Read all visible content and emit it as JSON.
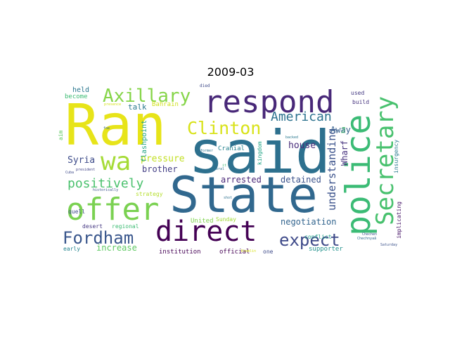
{
  "title": "2009-03",
  "words": [
    {
      "text": "said",
      "color": "#2d708e"
    },
    {
      "text": "Ran",
      "color": "#e7e419"
    },
    {
      "text": "State",
      "color": "#31688e"
    },
    {
      "text": "police",
      "color": "#3bbb75"
    },
    {
      "text": "respond",
      "color": "#482878"
    },
    {
      "text": "offer",
      "color": "#7ad151"
    },
    {
      "text": "direct",
      "color": "#440154"
    },
    {
      "text": "Secretary",
      "color": "#48c16e"
    },
    {
      "text": "wa",
      "color": "#a5db36"
    },
    {
      "text": "Axillary",
      "color": "#86d549"
    },
    {
      "text": "Clinton",
      "color": "#d8e219"
    },
    {
      "text": "Fordham",
      "color": "#39568c"
    },
    {
      "text": "expect",
      "color": "#3e4a89"
    },
    {
      "text": "American",
      "color": "#2c728e"
    },
    {
      "text": "positively",
      "color": "#4ac16d"
    },
    {
      "text": "understanding",
      "color": "#3b528b"
    },
    {
      "text": "pressure",
      "color": "#c2df23"
    },
    {
      "text": "house",
      "color": "#472c7a"
    },
    {
      "text": "Syria",
      "color": "#3e4c8a"
    },
    {
      "text": "brother",
      "color": "#433e85"
    },
    {
      "text": "arrested",
      "color": "#482677"
    },
    {
      "text": "detained",
      "color": "#3b528b"
    },
    {
      "text": "negotiation",
      "color": "#32648e"
    },
    {
      "text": "increase",
      "color": "#5ec962"
    },
    {
      "text": "Away",
      "color": "#355f8d"
    },
    {
      "text": "Wharf",
      "color": "#46327e"
    },
    {
      "text": "talk",
      "color": "#2a788e"
    },
    {
      "text": "held",
      "color": "#2a778e"
    },
    {
      "text": "become",
      "color": "#3dbc74"
    },
    {
      "text": "flashpoint",
      "color": "#20a386"
    },
    {
      "text": "Bahrain",
      "color": "#d0e11c"
    },
    {
      "text": "Cranial",
      "color": "#26828e"
    },
    {
      "text": "institution",
      "color": "#440154"
    },
    {
      "text": "official",
      "color": "#440154"
    },
    {
      "text": "supporter",
      "color": "#21918c"
    },
    {
      "text": "United",
      "color": "#7fd34e"
    },
    {
      "text": "Sunday",
      "color": "#a2da37"
    },
    {
      "text": "regional",
      "color": "#3dbc74"
    },
    {
      "text": "desert",
      "color": "#453882"
    },
    {
      "text": "quell",
      "color": "#3e4989"
    },
    {
      "text": "strategy",
      "color": "#b5de2b"
    },
    {
      "text": "early",
      "color": "#25848e"
    },
    {
      "text": "one",
      "color": "#3e4a89"
    },
    {
      "text": "conflict",
      "color": "#1fa187"
    },
    {
      "text": "used",
      "color": "#443a83"
    },
    {
      "text": "build",
      "color": "#46337f"
    },
    {
      "text": "kingdom",
      "color": "#20a486"
    },
    {
      "text": "insurgency",
      "color": "#297b8e"
    },
    {
      "text": "implicating",
      "color": "#481668"
    },
    {
      "text": "aim",
      "color": "#5ec962"
    },
    {
      "text": "ha",
      "color": "#4ac16d"
    },
    {
      "text": "died",
      "color": "#3e4a89"
    },
    {
      "text": "presence",
      "color": "#d5e21a"
    },
    {
      "text": "foe",
      "color": "#31688e"
    },
    {
      "text": "former",
      "color": "#2c728e"
    },
    {
      "text": "backed",
      "color": "#2a788e"
    },
    {
      "text": "general",
      "color": "#2c728e"
    },
    {
      "text": "Cuba",
      "color": "#3e4a89"
    },
    {
      "text": "president",
      "color": "#414487"
    },
    {
      "text": "historically",
      "color": "#3b528b"
    },
    {
      "text": "shot",
      "color": "#2d708e"
    },
    {
      "text": "Chechen",
      "color": "#3b528b"
    },
    {
      "text": "Chechnyaâ",
      "color": "#31688e"
    },
    {
      "text": "Saturday",
      "color": "#3b528b"
    },
    {
      "text": "Kremlin",
      "color": "#d8e219"
    },
    {
      "text": "it",
      "color": "#3dbc74"
    }
  ]
}
